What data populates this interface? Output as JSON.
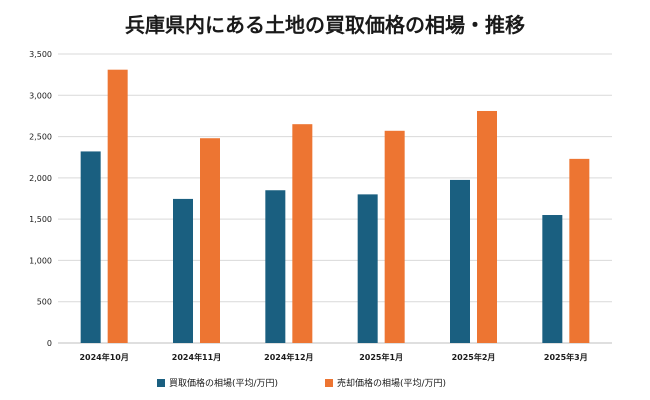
{
  "chart_data": {
    "type": "bar",
    "title": "兵庫県内にある土地の買取価格の相場・推移",
    "xlabel": "",
    "ylabel": "",
    "ylim": [
      0,
      3500
    ],
    "yticks": [
      0,
      500,
      1000,
      1500,
      2000,
      2500,
      3000,
      3500
    ],
    "ytick_labels": [
      "0",
      "500",
      "1,000",
      "1,500",
      "2,000",
      "2,500",
      "3,000",
      "3,500"
    ],
    "grid": true,
    "legend_position": "bottom",
    "categories": [
      "2024年10月",
      "2024年11月",
      "2024年12月",
      "2025年1月",
      "2025年2月",
      "2025年3月"
    ],
    "series": [
      {
        "name": "買取価格の相場(平均/万円)",
        "color": "#1a5f80",
        "values": [
          2320,
          1745,
          1850,
          1800,
          1975,
          1550
        ]
      },
      {
        "name": "売却価格の相場(平均/万円)",
        "color": "#ed7532",
        "values": [
          3310,
          2480,
          2650,
          2570,
          2810,
          2230
        ]
      }
    ]
  }
}
